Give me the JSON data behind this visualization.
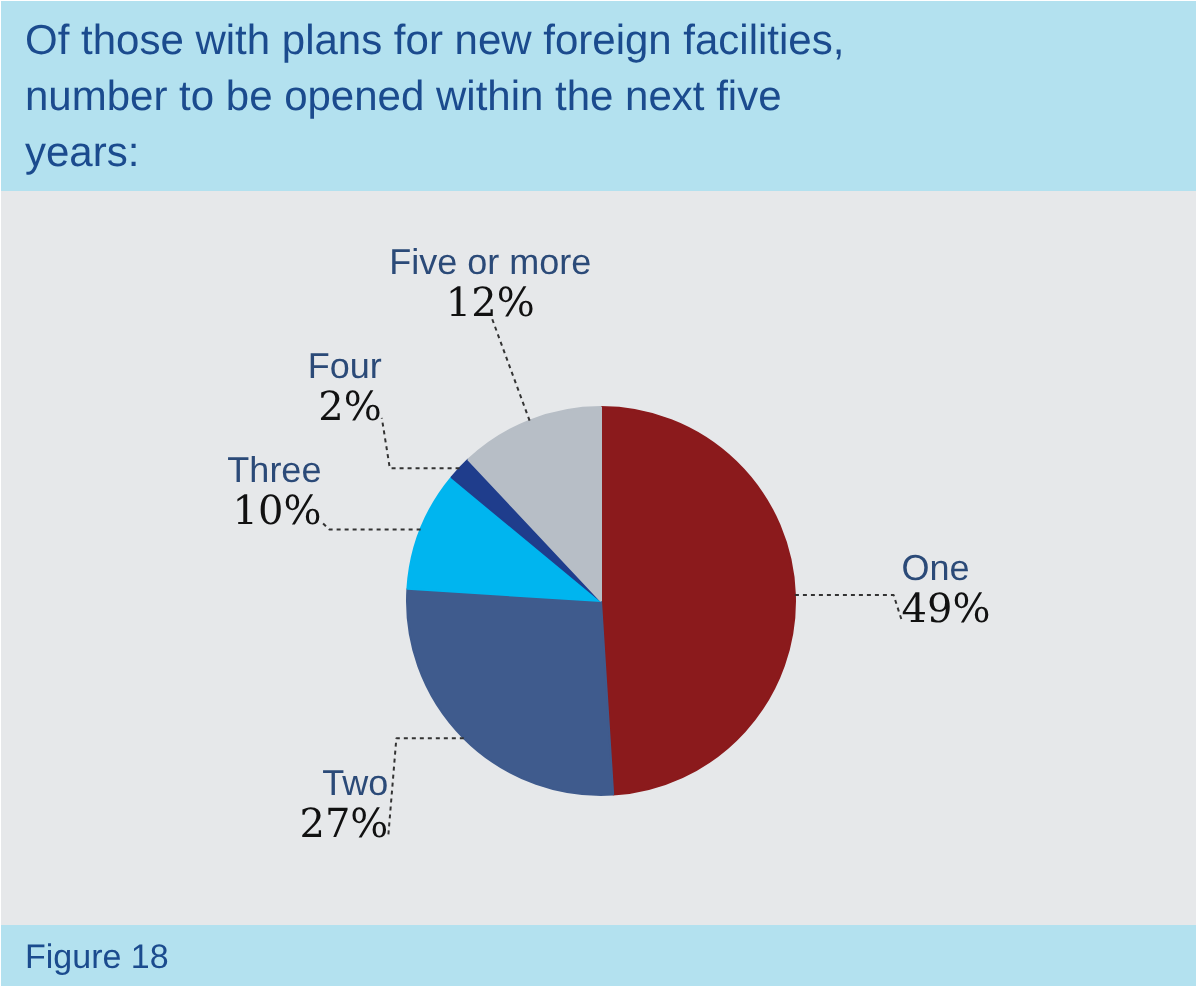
{
  "chart_data": {
    "type": "pie",
    "title": "Of those with plans for new foreign facilities,\nnumber to be opened within the next five\nyears:",
    "categories": [
      "One",
      "Two",
      "Three",
      "Four",
      "Five or more"
    ],
    "values": [
      49,
      27,
      10,
      2,
      12
    ],
    "colors": [
      "#8b1a1c",
      "#3f5b8d",
      "#00b5ef",
      "#1f3d8c",
      "#b7bec6"
    ],
    "value_labels": [
      "49%",
      "27%",
      "10%",
      "2%",
      "12%"
    ],
    "annotations": [
      "Figure 18"
    ]
  }
}
